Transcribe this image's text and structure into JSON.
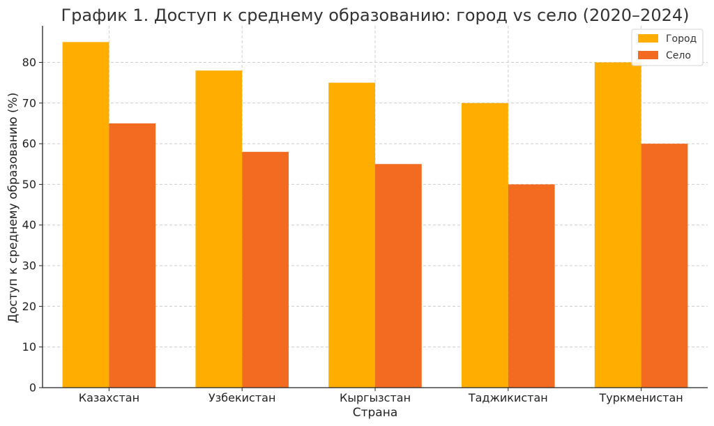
{
  "chart_data": {
    "type": "bar",
    "title": "График 1. Доступ к среднему образованию: город vs село (2020–2024)",
    "xlabel": "Страна",
    "ylabel": "Доступ к среднему образованию (%)",
    "categories": [
      "Казахстан",
      "Узбекистан",
      "Кыргызстан",
      "Таджикистан",
      "Туркменистан"
    ],
    "series": [
      {
        "name": "Город",
        "color": "#FFAE00",
        "values": [
          85,
          78,
          75,
          70,
          80
        ]
      },
      {
        "name": "Село",
        "color": "#F26B21",
        "values": [
          65,
          58,
          55,
          50,
          60
        ]
      }
    ],
    "ylim": [
      0,
      89
    ],
    "yticks": [
      0,
      10,
      20,
      30,
      40,
      50,
      60,
      70,
      80
    ],
    "grid": true,
    "legend_position": "top-right"
  }
}
